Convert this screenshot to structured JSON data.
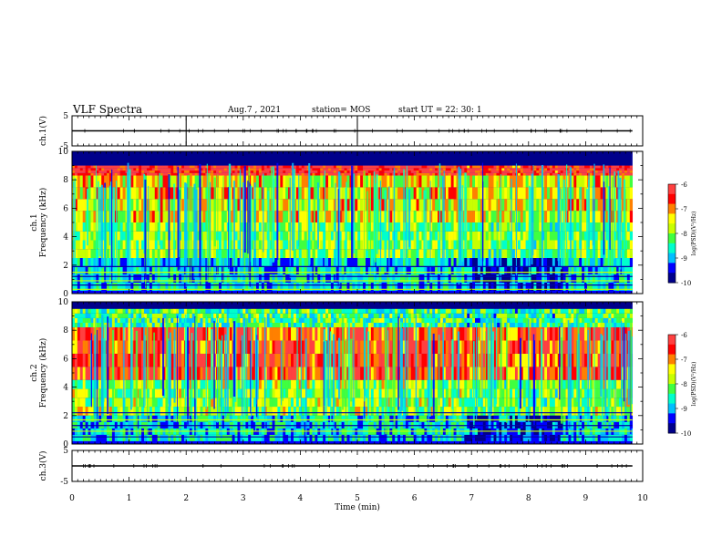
{
  "header": {
    "title": "VLF Spectra",
    "date": "Aug.7 , 2021",
    "station": "station= MOS",
    "start": "start UT = 22: 30: 1"
  },
  "colors": {
    "colormap": [
      "#00008b",
      "#0000ff",
      "#00bfff",
      "#00ffcc",
      "#40ff40",
      "#c8ff00",
      "#ffff00",
      "#ff8000",
      "#ff0000",
      "#ff4040",
      "#ffffff"
    ]
  },
  "chart_data": [
    {
      "type": "line",
      "panel": "ch1-waveform",
      "ylabel": "ch.1(V)",
      "ylim": [
        -5,
        5
      ],
      "yticks": [
        5,
        -5
      ],
      "level": 0,
      "xlim": [
        0,
        10
      ],
      "x_end": 9.82
    },
    {
      "type": "heatmap",
      "panel": "ch1-spectrogram",
      "ylabel": "ch.1\nFrequency (kHz)",
      "ylim": [
        0,
        10
      ],
      "yticks": [
        0,
        2,
        4,
        6,
        8,
        10
      ],
      "xlim": [
        0,
        10
      ],
      "x_end": 9.82,
      "colorbar": {
        "label": "log(PSD)(V²/Hz)",
        "range": [
          -10,
          -6
        ],
        "ticks": [
          -6,
          -7,
          -8,
          -9,
          -10
        ]
      },
      "bands_khz": [
        {
          "f0": 8.3,
          "f1": 9.0,
          "level": -6.3
        },
        {
          "f0": 5.0,
          "f1": 8.3,
          "level": -7.4
        },
        {
          "f0": 2.5,
          "f1": 5.0,
          "level": -8.0
        },
        {
          "f0": 0.2,
          "f1": 2.5,
          "level": -8.8
        }
      ],
      "lines_khz": [
        1.9,
        1.5,
        1.2,
        0.9,
        0.6,
        0.3
      ]
    },
    {
      "type": "heatmap",
      "panel": "ch2-spectrogram",
      "ylabel": "ch.2\nFrequency (kHz)",
      "ylim": [
        0,
        10
      ],
      "yticks": [
        0,
        2,
        4,
        6,
        8,
        10
      ],
      "xlim": [
        0,
        10
      ],
      "x_end": 9.82,
      "colorbar": {
        "label": "log(PSD)(V²/Hz)",
        "range": [
          -10,
          -6
        ],
        "ticks": [
          -6,
          -7,
          -8,
          -9,
          -10
        ]
      },
      "bands_khz": [
        {
          "f0": 8.2,
          "f1": 9.5,
          "level": -8.3
        },
        {
          "f0": 4.5,
          "f1": 8.2,
          "level": -6.6
        },
        {
          "f0": 2.0,
          "f1": 4.5,
          "level": -7.9
        },
        {
          "f0": 0.2,
          "f1": 2.0,
          "level": -8.8
        }
      ],
      "lines_khz": [
        2.2,
        1.7,
        1.3,
        0.9,
        0.5
      ]
    },
    {
      "type": "line",
      "panel": "ch3-waveform",
      "ylabel": "ch.3(V)",
      "ylim": [
        -5,
        5
      ],
      "yticks": [
        5,
        -5
      ],
      "level": 0,
      "xlim": [
        0,
        10
      ],
      "x_end": 9.82,
      "xlabel": "Time (min)",
      "xticks": [
        0,
        1,
        2,
        3,
        4,
        5,
        6,
        7,
        8,
        9,
        10
      ]
    }
  ]
}
